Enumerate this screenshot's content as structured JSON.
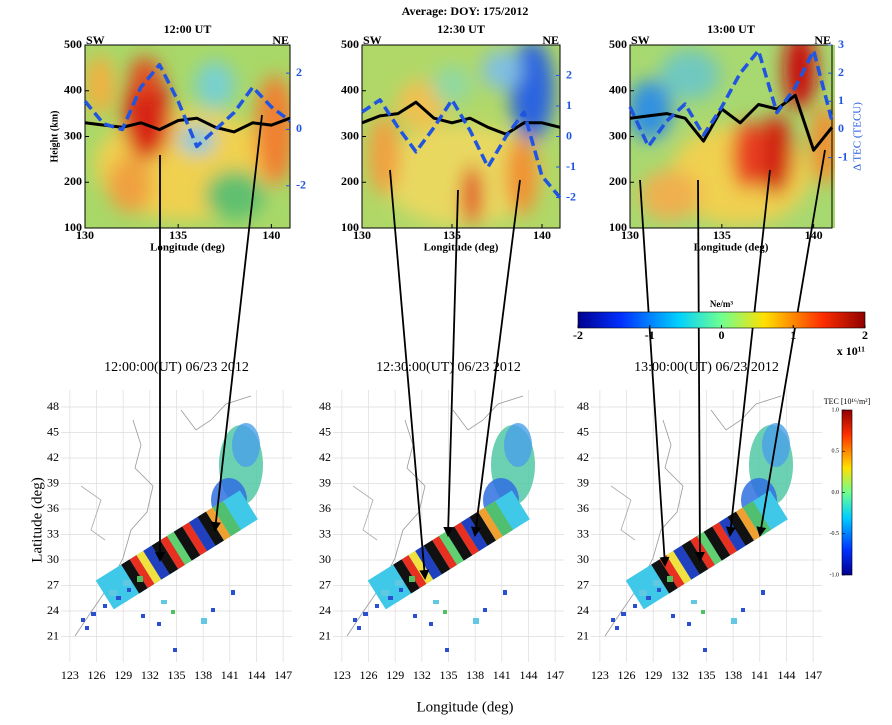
{
  "figure": {
    "title": "Average: DOY: 175/2012",
    "map_x_label": "Longitude (deg)",
    "map_y_label": "Latitude (deg)"
  },
  "chart_data": [
    {
      "type": "line",
      "title": "12:00 UT",
      "left_corner": "SW",
      "right_corner": "NE",
      "x_label": "Longitude (deg)",
      "y_label": "Height (km)",
      "xlim": [
        130,
        141
      ],
      "xticks": [
        130,
        135,
        140
      ],
      "ylim": [
        100,
        500
      ],
      "yticks": [
        100,
        200,
        300,
        400,
        500
      ],
      "y2lim": [
        -3.5,
        3
      ],
      "y2ticks": [
        -2,
        0,
        2
      ],
      "x": [
        130,
        131,
        132,
        133,
        134,
        135,
        136,
        137,
        138,
        139,
        140,
        141
      ],
      "series": [
        {
          "color": "#000000",
          "values": [
            330,
            325,
            320,
            330,
            315,
            335,
            340,
            320,
            310,
            330,
            325,
            340
          ]
        },
        {
          "color": "#1f55e0",
          "dashed": true,
          "axis": "y2",
          "values": [
            1.0,
            0.2,
            0,
            1.5,
            2.3,
            1.0,
            -0.6,
            0,
            0.6,
            1.5,
            0.8,
            0.3
          ]
        }
      ]
    },
    {
      "type": "line",
      "title": "12:30 UT",
      "left_corner": "SW",
      "right_corner": "NE",
      "x_label": "Longitude (deg)",
      "xlim": [
        130,
        141
      ],
      "xticks": [
        130,
        135,
        140
      ],
      "ylim": [
        100,
        500
      ],
      "yticks": [
        100,
        200,
        300,
        400,
        500
      ],
      "y2lim": [
        -3,
        3
      ],
      "y2ticks": [
        -2,
        -1,
        0,
        1,
        2
      ],
      "x": [
        130,
        131,
        132,
        133,
        134,
        135,
        136,
        137,
        138,
        139,
        140,
        141
      ],
      "series": [
        {
          "color": "#000000",
          "values": [
            330,
            345,
            350,
            375,
            340,
            330,
            340,
            320,
            305,
            330,
            330,
            320
          ]
        },
        {
          "color": "#1f55e0",
          "dashed": true,
          "axis": "y2",
          "values": [
            0.8,
            1.2,
            0.3,
            -0.5,
            0.3,
            1.2,
            0.2,
            -1.0,
            0,
            0.8,
            -1.3,
            -2.0
          ]
        }
      ]
    },
    {
      "type": "line",
      "title": "13:00 UT",
      "left_corner": "SW",
      "right_corner": "NE",
      "x_label": "Longitude (deg)",
      "y2_label": "Δ TEC (TECU)",
      "xlim": [
        130,
        141
      ],
      "xticks": [
        130,
        135,
        140
      ],
      "ylim": [
        100,
        500
      ],
      "yticks": [
        100,
        200,
        300,
        400,
        500
      ],
      "y2lim": [
        -3.5,
        3
      ],
      "y2ticks": [
        -1,
        0,
        1,
        2,
        3
      ],
      "x": [
        130,
        131,
        132,
        133,
        134,
        135,
        136,
        137,
        138,
        139,
        140,
        141
      ],
      "series": [
        {
          "color": "#000000",
          "values": [
            340,
            345,
            350,
            340,
            290,
            360,
            330,
            370,
            360,
            390,
            270,
            320
          ]
        },
        {
          "color": "#1f55e0",
          "dashed": true,
          "axis": "y2",
          "values": [
            0.8,
            -0.6,
            0.3,
            0.9,
            -0.2,
            0.8,
            2.0,
            2.8,
            0.6,
            1.5,
            2.8,
            0.3
          ]
        }
      ]
    },
    {
      "type": "colorbar",
      "label": "Ne/m³",
      "multiplier": "x 10¹¹",
      "colormap": "jet",
      "lim": [
        -2,
        2
      ],
      "ticks": [
        -2,
        -1,
        0,
        1,
        2
      ]
    },
    {
      "type": "map",
      "title": "12:00:00(UT)  06/23 2012",
      "grid": true,
      "xlim": [
        122,
        148
      ],
      "xticks": [
        123,
        126,
        129,
        132,
        135,
        138,
        141,
        144,
        147
      ],
      "ylim": [
        18,
        50
      ],
      "yticks": [
        21,
        24,
        27,
        30,
        33,
        36,
        39,
        42,
        45,
        48
      ]
    },
    {
      "type": "map",
      "title": "12:30:00(UT)  06/23 2012",
      "grid": true,
      "xlim": [
        122,
        148
      ],
      "xticks": [
        123,
        126,
        129,
        132,
        135,
        138,
        141,
        144,
        147
      ],
      "ylim": [
        18,
        50
      ],
      "yticks": [
        21,
        24,
        27,
        30,
        33,
        36,
        39,
        42,
        45,
        48
      ]
    },
    {
      "type": "map",
      "title": "13:00:00(UT)  06/23 2012",
      "grid": true,
      "xlim": [
        122,
        148
      ],
      "xticks": [
        123,
        126,
        129,
        132,
        135,
        138,
        141,
        144,
        147
      ],
      "ylim": [
        18,
        50
      ],
      "yticks": [
        21,
        24,
        27,
        30,
        33,
        36,
        39,
        42,
        45,
        48
      ]
    },
    {
      "type": "colorbar",
      "orientation": "vertical",
      "label": "TEC [10¹⁶/m²]",
      "colormap": "jet",
      "lim": [
        -1,
        1
      ],
      "ticks": [
        {
          "value": -1,
          "label": "-1.0"
        },
        {
          "value": -0.5,
          "label": "-0.5"
        },
        {
          "value": 0,
          "label": "0.0"
        },
        {
          "value": 0.5,
          "label": "0.5"
        },
        {
          "value": 1,
          "label": "1.0"
        }
      ]
    }
  ]
}
